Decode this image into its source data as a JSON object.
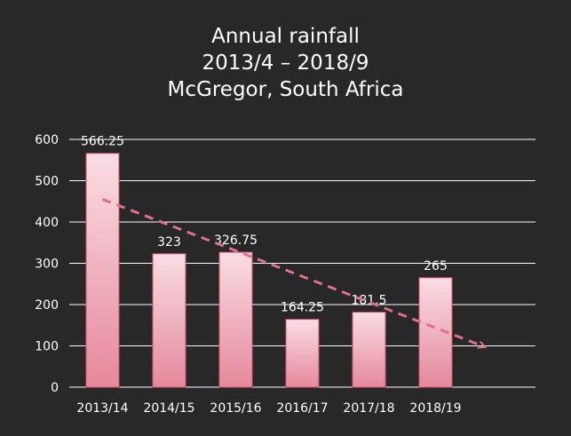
{
  "chart_data": {
    "type": "bar",
    "title_lines": [
      "Annual rainfall",
      "2013/4 – 2018/9",
      "McGregor, South Africa"
    ],
    "categories": [
      "2013/14",
      "2014/15",
      "2015/16",
      "2016/17",
      "2017/18",
      "2018/19"
    ],
    "values": [
      566.25,
      323,
      326.75,
      164.25,
      181.5,
      265
    ],
    "data_labels": [
      "566.25",
      "323",
      "326.75",
      "164.25",
      "181.5",
      "265"
    ],
    "xlabel": "",
    "ylabel": "",
    "ylim": [
      0,
      600
    ],
    "yticks": [
      0,
      100,
      200,
      300,
      400,
      500,
      600
    ],
    "grid": true,
    "trendline": {
      "type": "linear",
      "style": "dashed",
      "arrow": true,
      "from_value": 455,
      "to_value": 98
    },
    "colors": {
      "background": "#282828",
      "bar_top": "#f9dde4",
      "bar_bottom": "#e6889c",
      "bar_edge": "#d9536f",
      "trendline": "#e07090",
      "grid": "#ffffff",
      "text": "#ffffff"
    }
  }
}
